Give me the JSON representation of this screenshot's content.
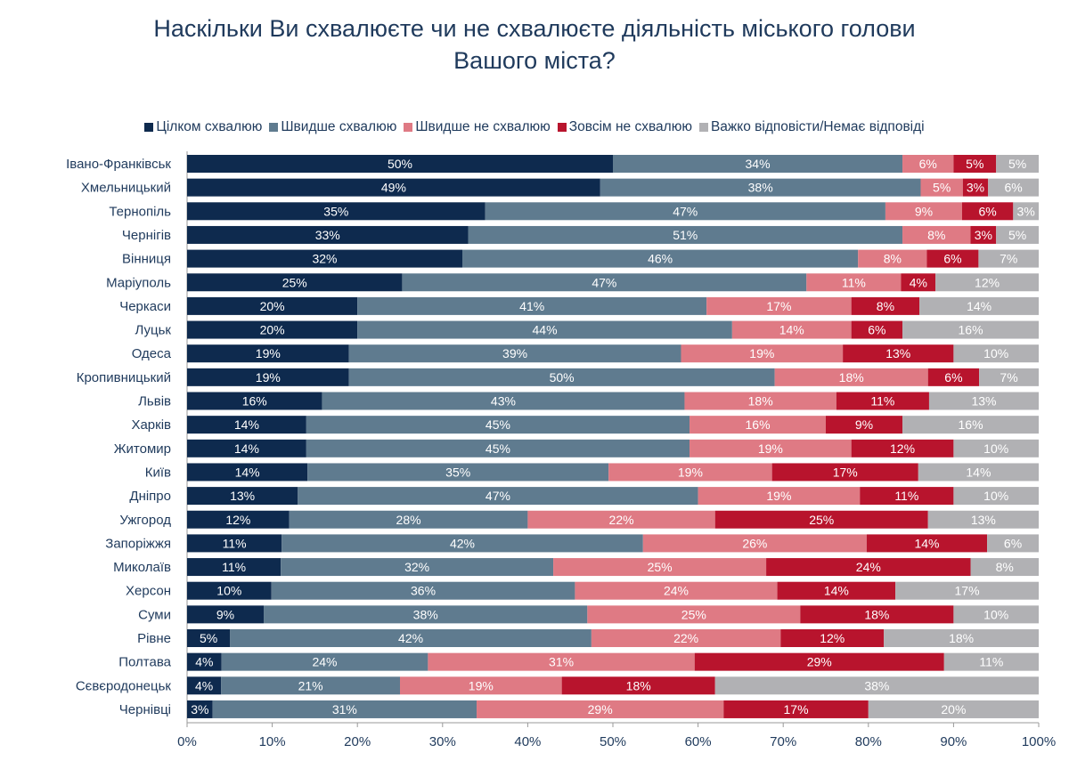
{
  "chart_data": {
    "type": "bar",
    "orientation": "horizontal",
    "stacked": true,
    "title": "Наскільки Ви схвалюєте чи не схвалюєте діяльність міського голови Вашого міста?",
    "title_lines": [
      "Наскільки Ви схвалюєте чи не схвалюєте діяльність міського голови",
      "Вашого міста?"
    ],
    "legend_position": "top",
    "xlim": [
      0,
      100
    ],
    "x_ticks": [
      "0%",
      "10%",
      "20%",
      "30%",
      "40%",
      "50%",
      "60%",
      "70%",
      "80%",
      "90%",
      "100%"
    ],
    "grid": false,
    "categories": [
      "Івано-Франківськ",
      "Хмельницький",
      "Тернопіль",
      "Чернігів",
      "Вінниця",
      "Маріуполь",
      "Черкаси",
      "Луцьк",
      "Одеса",
      "Кропивницький",
      "Львів",
      "Харків",
      "Житомир",
      "Київ",
      "Дніпро",
      "Ужгород",
      "Запоріжжя",
      "Миколаїв",
      "Херсон",
      "Суми",
      "Рівне",
      "Полтава",
      "Сєвєродонецьк",
      "Чернівці"
    ],
    "series": [
      {
        "name": "Цілком схвалюю",
        "color": "#0e2a4e",
        "values": [
          50,
          49,
          35,
          33,
          32,
          25,
          20,
          20,
          19,
          19,
          16,
          14,
          14,
          14,
          13,
          12,
          11,
          11,
          10,
          9,
          5,
          4,
          4,
          3
        ]
      },
      {
        "name": "Швидше схвалюю",
        "color": "#5f7b8f",
        "values": [
          34,
          38,
          47,
          51,
          46,
          47,
          41,
          44,
          39,
          50,
          43,
          45,
          45,
          35,
          47,
          28,
          42,
          32,
          36,
          38,
          42,
          24,
          21,
          31
        ]
      },
      {
        "name": "Швидше не схвалюю",
        "color": "#df7a84",
        "values": [
          6,
          5,
          9,
          8,
          8,
          11,
          17,
          14,
          19,
          18,
          18,
          16,
          19,
          19,
          19,
          22,
          26,
          25,
          24,
          25,
          22,
          31,
          19,
          29
        ]
      },
      {
        "name": "Зовсім не схвалюю",
        "color": "#b8142d",
        "values": [
          5,
          3,
          6,
          3,
          6,
          4,
          8,
          6,
          13,
          6,
          11,
          9,
          12,
          17,
          11,
          25,
          14,
          24,
          14,
          18,
          12,
          29,
          18,
          17
        ]
      },
      {
        "name": "Важко відповісти/Немає відповіді",
        "color": "#b1b1b4",
        "values": [
          5,
          6,
          3,
          5,
          7,
          12,
          14,
          16,
          10,
          7,
          13,
          16,
          10,
          14,
          10,
          13,
          6,
          8,
          17,
          10,
          18,
          11,
          38,
          20
        ]
      }
    ]
  }
}
